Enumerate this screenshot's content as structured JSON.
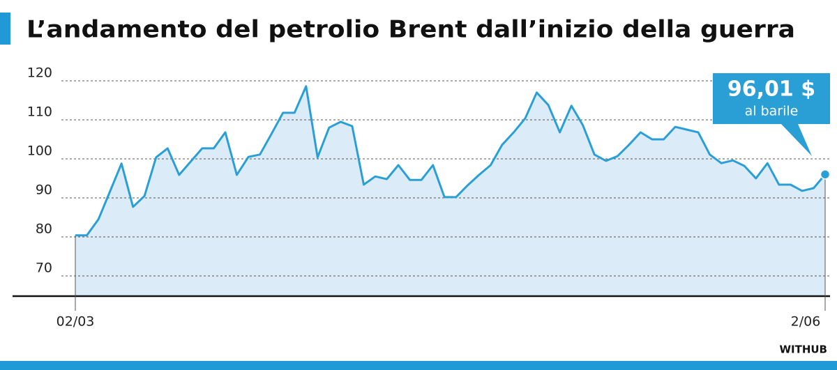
{
  "chart_data": {
    "type": "line",
    "title": "L’andamento del petrolio Brent dall’inizio della guerra",
    "categories": [
      "02/03",
      null,
      null,
      null,
      null,
      null,
      null,
      null,
      null,
      null,
      null,
      null,
      null,
      null,
      null,
      null,
      null,
      null,
      null,
      null,
      null,
      null,
      null,
      null,
      null,
      null,
      null,
      null,
      null,
      null,
      null,
      null,
      null,
      null,
      null,
      null,
      null,
      null,
      null,
      null,
      null,
      null,
      null,
      null,
      null,
      null,
      null,
      null,
      null,
      null,
      null,
      null,
      null,
      null,
      null,
      null,
      null,
      null,
      null,
      null,
      null,
      null,
      null,
      null,
      null,
      "2/06"
    ],
    "series": [
      {
        "name": "Brent",
        "color": "#2a9fd6",
        "values": [
          80.4,
          80.4,
          84.5,
          91.6,
          98.8,
          87.7,
          90.5,
          100.4,
          102.7,
          95.9,
          99.3,
          102.7,
          102.7,
          106.8,
          95.9,
          100.5,
          101.1,
          106.4,
          111.8,
          111.8,
          118.6,
          100.4,
          108.0,
          109.5,
          108.4,
          93.4,
          95.5,
          94.8,
          98.4,
          94.6,
          94.6,
          98.4,
          90.2,
          90.2,
          93.2,
          95.9,
          98.4,
          103.6,
          106.8,
          110.4,
          117.0,
          113.8,
          106.8,
          113.6,
          108.6,
          101.1,
          99.5,
          100.7,
          103.6,
          106.8,
          105.0,
          105.0,
          108.2,
          107.5,
          106.8,
          101.1,
          98.9,
          99.6,
          98.2,
          95.0,
          98.9,
          93.4,
          93.4,
          91.8,
          92.5,
          96.01
        ],
        "value_labels": [
          null,
          null,
          null,
          null,
          null,
          null,
          null,
          null,
          null,
          null,
          null,
          null,
          null,
          null,
          null,
          null,
          null,
          null,
          null,
          null,
          null,
          null,
          null,
          null,
          null,
          null,
          null,
          null,
          null,
          null,
          null,
          null,
          null,
          null,
          null,
          null,
          null,
          null,
          null,
          null,
          null,
          null,
          null,
          null,
          null,
          null,
          null,
          null,
          null,
          null,
          null,
          null,
          null,
          null,
          null,
          null,
          null,
          null,
          null,
          null,
          null,
          null,
          null,
          null,
          null,
          "96,01 $"
        ]
      }
    ],
    "annotation": "al barile",
    "area_color": "#dcebf8",
    "ylim": [
      65,
      125
    ],
    "yticks": [
      70,
      80,
      90,
      100,
      110,
      120
    ],
    "grid": true,
    "source": "WITHUB"
  }
}
